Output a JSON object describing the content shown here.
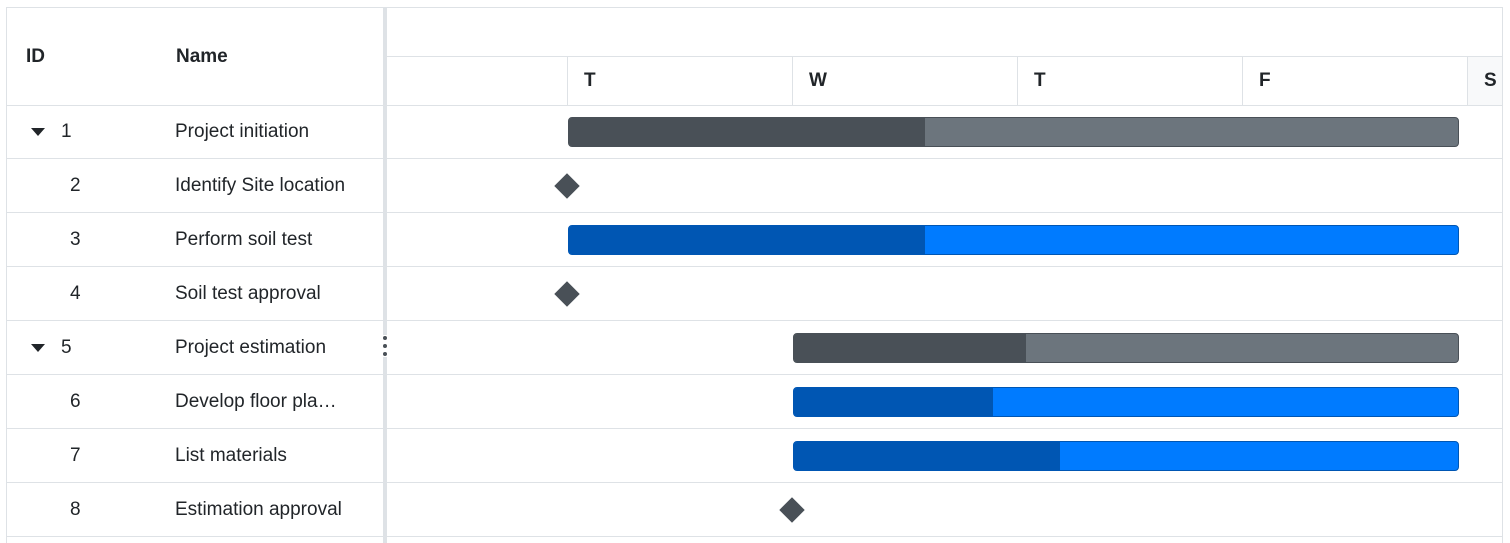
{
  "grid": {
    "columns": {
      "id": "ID",
      "name": "Name"
    },
    "rows": [
      {
        "id": "1",
        "name": "Project initiation",
        "parent": true
      },
      {
        "id": "2",
        "name": "Identify Site location",
        "parent": false
      },
      {
        "id": "3",
        "name": "Perform soil test",
        "parent": false
      },
      {
        "id": "4",
        "name": "Soil test approval",
        "parent": false
      },
      {
        "id": "5",
        "name": "Project estimation",
        "parent": true
      },
      {
        "id": "6",
        "name": "Develop floor pla…",
        "parent": false
      },
      {
        "id": "7",
        "name": "List materials",
        "parent": false
      },
      {
        "id": "8",
        "name": "Estimation approval",
        "parent": false
      }
    ]
  },
  "timeline": {
    "days": [
      "T",
      "W",
      "T",
      "F",
      "S"
    ]
  },
  "tasks": [
    {
      "row": 0,
      "type": "parent",
      "start_day": 0,
      "duration_days": 3.96,
      "progress": 0.4
    },
    {
      "row": 1,
      "type": "milestone",
      "start_day": 0
    },
    {
      "row": 2,
      "type": "child",
      "start_day": 0,
      "duration_days": 3.96,
      "progress": 0.4
    },
    {
      "row": 3,
      "type": "milestone",
      "start_day": 0
    },
    {
      "row": 4,
      "type": "parent",
      "start_day": 1,
      "duration_days": 2.96,
      "progress": 0.35
    },
    {
      "row": 5,
      "type": "child",
      "start_day": 1,
      "duration_days": 2.96,
      "progress": 0.3
    },
    {
      "row": 6,
      "type": "child",
      "start_day": 1,
      "duration_days": 2.96,
      "progress": 0.4
    },
    {
      "row": 7,
      "type": "milestone",
      "start_day": 1
    }
  ],
  "colors": {
    "parent_bar": "#6c757d",
    "parent_progress": "#495057",
    "child_bar": "#007bff",
    "child_progress": "#0056b3",
    "milestone": "#495057"
  }
}
